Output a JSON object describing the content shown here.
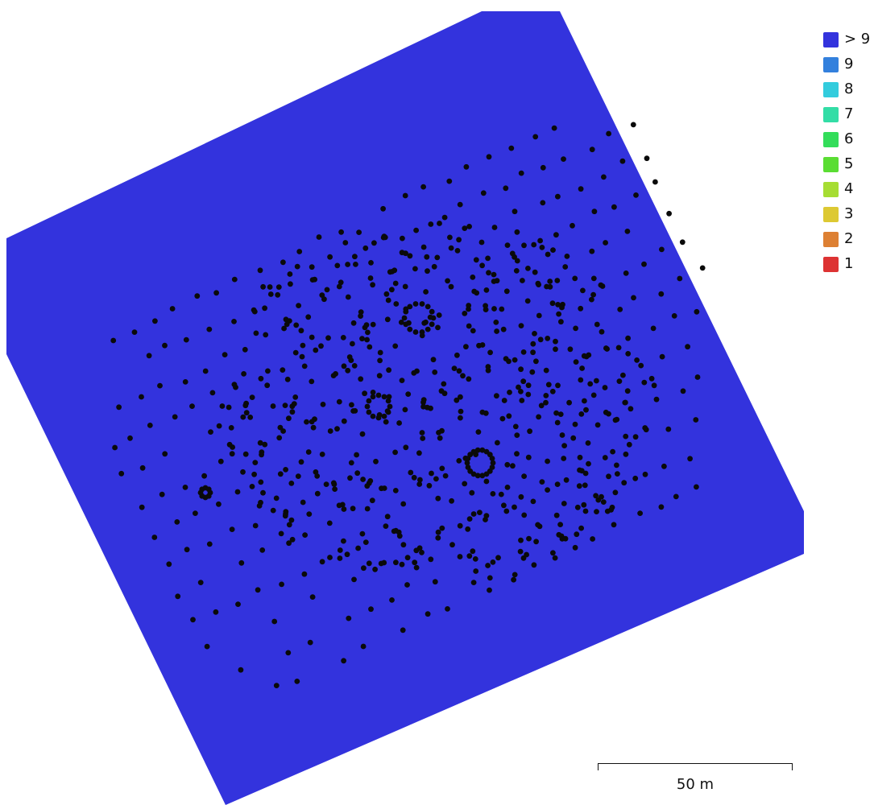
{
  "map": {
    "area_color": "#3333dd",
    "camera_color": "#0a0a0a"
  },
  "legend": {
    "items": [
      {
        "label": "> 9",
        "color": "#3333dd"
      },
      {
        "label": "9",
        "color": "#3380dd"
      },
      {
        "label": "8",
        "color": "#33ccdd"
      },
      {
        "label": "7",
        "color": "#33dda6"
      },
      {
        "label": "6",
        "color": "#33dd5a"
      },
      {
        "label": "5",
        "color": "#5add33"
      },
      {
        "label": "4",
        "color": "#a6dd33"
      },
      {
        "label": "3",
        "color": "#ddc933"
      },
      {
        "label": "2",
        "color": "#dd8033"
      },
      {
        "label": "1",
        "color": "#dd3333"
      }
    ]
  },
  "scale": {
    "label": "50 m"
  }
}
